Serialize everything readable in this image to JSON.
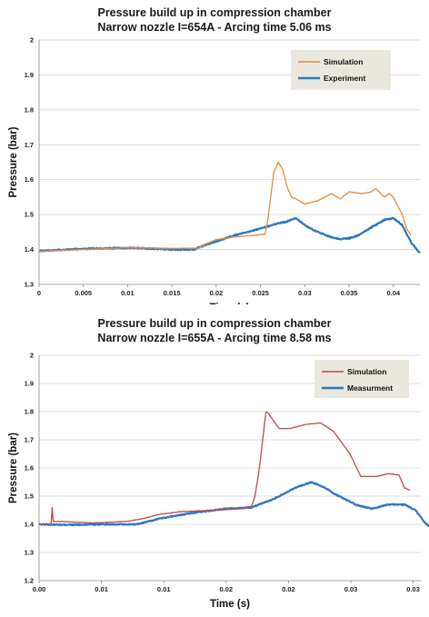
{
  "chart_data": [
    {
      "type": "line",
      "title": "Pressure build up in compression chamber",
      "subtitle": "Narrow nozzle I=654A -  Arcing time 5.06 ms",
      "xlabel": "Time (s)",
      "ylabel": "Pressure (bar)",
      "xlim": [
        0,
        0.043
      ],
      "ylim": [
        1.3,
        2
      ],
      "xticks": [
        "0",
        "0.005",
        "0.01",
        "0.015",
        "0.02",
        "0.025",
        "0.03",
        "0.035",
        "0.04"
      ],
      "yticks": [
        "1.3",
        "1.4",
        "1.5",
        "1.6",
        "1.7",
        "1.8",
        "1.9",
        "2"
      ],
      "grid": "horizontal",
      "legend_position": "top-right",
      "series": [
        {
          "name": "Simulation",
          "color": "#e8893a",
          "points": [
            [
              0.0,
              1.395
            ],
            [
              0.005,
              1.4
            ],
            [
              0.01,
              1.405
            ],
            [
              0.015,
              1.403
            ],
            [
              0.018,
              1.404
            ],
            [
              0.019,
              1.418
            ],
            [
              0.02,
              1.428
            ],
            [
              0.022,
              1.436
            ],
            [
              0.024,
              1.44
            ],
            [
              0.0255,
              1.444
            ],
            [
              0.0258,
              1.48
            ],
            [
              0.026,
              1.52
            ],
            [
              0.0265,
              1.62
            ],
            [
              0.027,
              1.65
            ],
            [
              0.0275,
              1.63
            ],
            [
              0.028,
              1.58
            ],
            [
              0.0285,
              1.55
            ],
            [
              0.029,
              1.545
            ],
            [
              0.03,
              1.53
            ],
            [
              0.0315,
              1.54
            ],
            [
              0.033,
              1.56
            ],
            [
              0.034,
              1.545
            ],
            [
              0.035,
              1.565
            ],
            [
              0.0365,
              1.56
            ],
            [
              0.0375,
              1.565
            ],
            [
              0.038,
              1.575
            ],
            [
              0.039,
              1.55
            ],
            [
              0.0395,
              1.56
            ],
            [
              0.04,
              1.55
            ],
            [
              0.041,
              1.5
            ],
            [
              0.0415,
              1.46
            ],
            [
              0.042,
              1.44
            ]
          ]
        },
        {
          "name": "Experiment",
          "color": "#2a78c2",
          "points": [
            [
              0.0,
              1.396
            ],
            [
              0.005,
              1.402
            ],
            [
              0.01,
              1.405
            ],
            [
              0.015,
              1.4
            ],
            [
              0.0175,
              1.4
            ],
            [
              0.019,
              1.415
            ],
            [
              0.022,
              1.44
            ],
            [
              0.025,
              1.46
            ],
            [
              0.027,
              1.475
            ],
            [
              0.028,
              1.48
            ],
            [
              0.029,
              1.49
            ],
            [
              0.03,
              1.47
            ],
            [
              0.031,
              1.455
            ],
            [
              0.032,
              1.445
            ],
            [
              0.033,
              1.435
            ],
            [
              0.034,
              1.43
            ],
            [
              0.035,
              1.432
            ],
            [
              0.036,
              1.44
            ],
            [
              0.037,
              1.455
            ],
            [
              0.038,
              1.47
            ],
            [
              0.039,
              1.485
            ],
            [
              0.04,
              1.49
            ],
            [
              0.041,
              1.47
            ],
            [
              0.042,
              1.42
            ],
            [
              0.043,
              1.39
            ]
          ]
        }
      ]
    },
    {
      "type": "line",
      "title": "Pressure build up in compression chamber",
      "subtitle": "Narrow nozzle I=655A -  Arcing time 8.58 ms",
      "xlabel": "Time (s)",
      "ylabel": "Pressure (bar)",
      "xlim": [
        0,
        0.035
      ],
      "ylim": [
        1.2,
        2
      ],
      "xticks": [
        "0.00",
        "0.01",
        "0.01",
        "0.02",
        "0.02",
        "0.03",
        "0.03"
      ],
      "yticks": [
        "1.2",
        "1.3",
        "1.4",
        "1.5",
        "1.6",
        "1.7",
        "1.8",
        "1.9",
        "2"
      ],
      "grid": "horizontal",
      "legend_position": "top-right",
      "series": [
        {
          "name": "Simulation",
          "color": "#c0484c",
          "points": [
            [
              0.0,
              1.4
            ],
            [
              0.0011,
              1.4
            ],
            [
              0.0012,
              1.46
            ],
            [
              0.0013,
              1.41
            ],
            [
              0.002,
              1.41
            ],
            [
              0.005,
              1.405
            ],
            [
              0.008,
              1.41
            ],
            [
              0.0095,
              1.42
            ],
            [
              0.011,
              1.435
            ],
            [
              0.013,
              1.445
            ],
            [
              0.016,
              1.45
            ],
            [
              0.0185,
              1.455
            ],
            [
              0.0195,
              1.465
            ],
            [
              0.0198,
              1.5
            ],
            [
              0.0202,
              1.6
            ],
            [
              0.0205,
              1.7
            ],
            [
              0.0208,
              1.8
            ],
            [
              0.021,
              1.795
            ],
            [
              0.022,
              1.74
            ],
            [
              0.023,
              1.74
            ],
            [
              0.0245,
              1.755
            ],
            [
              0.0258,
              1.76
            ],
            [
              0.027,
              1.73
            ],
            [
              0.0285,
              1.65
            ],
            [
              0.0295,
              1.57
            ],
            [
              0.031,
              1.57
            ],
            [
              0.032,
              1.58
            ],
            [
              0.033,
              1.575
            ],
            [
              0.0335,
              1.53
            ],
            [
              0.034,
              1.52
            ]
          ]
        },
        {
          "name": "Measurment",
          "color": "#2a78c2",
          "points": [
            [
              0.0,
              1.4
            ],
            [
              0.003,
              1.398
            ],
            [
              0.006,
              1.4
            ],
            [
              0.009,
              1.4
            ],
            [
              0.011,
              1.42
            ],
            [
              0.014,
              1.44
            ],
            [
              0.017,
              1.455
            ],
            [
              0.0195,
              1.46
            ],
            [
              0.0215,
              1.49
            ],
            [
              0.0235,
              1.53
            ],
            [
              0.025,
              1.55
            ],
            [
              0.0262,
              1.53
            ],
            [
              0.027,
              1.51
            ],
            [
              0.029,
              1.47
            ],
            [
              0.0305,
              1.455
            ],
            [
              0.032,
              1.47
            ],
            [
              0.0335,
              1.47
            ],
            [
              0.0345,
              1.45
            ],
            [
              0.0355,
              1.4
            ],
            [
              0.0365,
              1.38
            ]
          ]
        }
      ]
    }
  ]
}
